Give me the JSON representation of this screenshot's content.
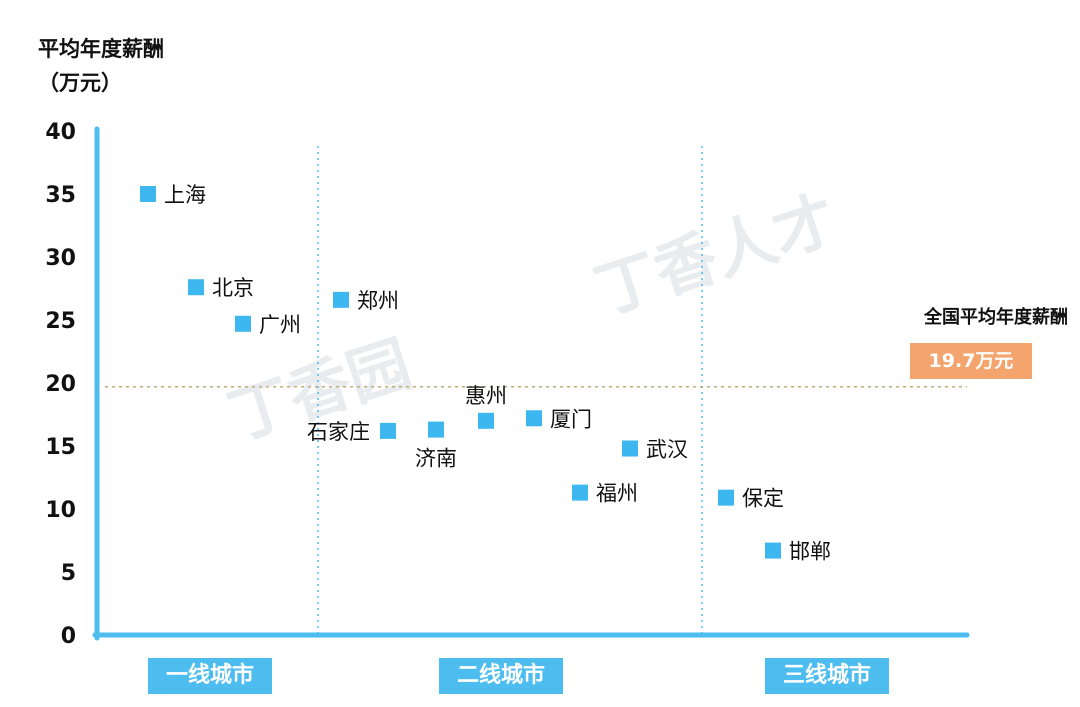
{
  "ytitle_line1": "平均年度薪酬",
  "ytitle_line2": "（万元）",
  "national": {
    "label": "全国平均年度薪酬",
    "value": 19.7,
    "badge": "19.7万元"
  },
  "tiers": [
    "一线城市",
    "二线城市",
    "三线城市"
  ],
  "watermarks": [
    "丁香园",
    "丁香人才"
  ],
  "colors": {
    "marker": "#3cb7ef",
    "axis": "#4dbdf0",
    "reference": "#c8a978",
    "divider": "#4dbdf0",
    "badge": "#f4a46d"
  },
  "chart_data": {
    "type": "scatter",
    "ylim": [
      0,
      40
    ],
    "yticks": [
      0,
      5,
      10,
      15,
      20,
      25,
      30,
      35,
      40
    ],
    "grid": false,
    "reference_line": 19.7,
    "points": [
      {
        "label": "上海",
        "tier": "一线城市",
        "value": 35.0
      },
      {
        "label": "北京",
        "tier": "一线城市",
        "value": 27.6
      },
      {
        "label": "广州",
        "tier": "一线城市",
        "value": 24.7
      },
      {
        "label": "郑州",
        "tier": "二线城市",
        "value": 26.6
      },
      {
        "label": "石家庄",
        "tier": "二线城市",
        "value": 16.2
      },
      {
        "label": "济南",
        "tier": "二线城市",
        "value": 16.3
      },
      {
        "label": "惠州",
        "tier": "二线城市",
        "value": 17.0
      },
      {
        "label": "厦门",
        "tier": "二线城市",
        "value": 17.2
      },
      {
        "label": "武汉",
        "tier": "二线城市",
        "value": 14.8
      },
      {
        "label": "福州",
        "tier": "二线城市",
        "value": 11.3
      },
      {
        "label": "保定",
        "tier": "三线城市",
        "value": 10.9
      },
      {
        "label": "邯郸",
        "tier": "三线城市",
        "value": 6.7
      }
    ]
  }
}
